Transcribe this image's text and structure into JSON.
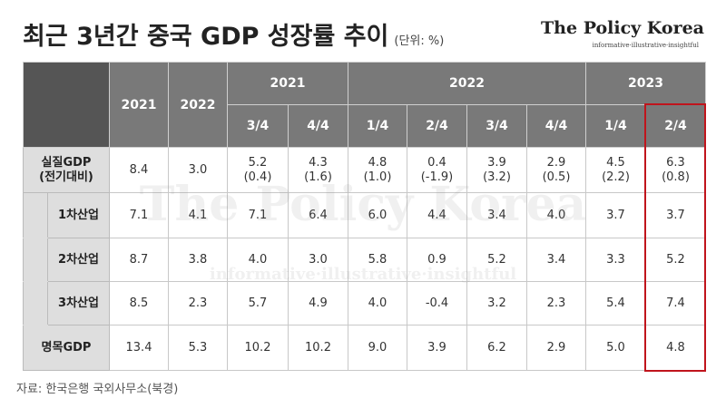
{
  "header": {
    "title": "최근 3년간 중국 GDP 성장률 추이",
    "unit": "(단위: %)",
    "logo": "The Policy Korea",
    "tagline": "informative·illustrative·insightful"
  },
  "table": {
    "years": [
      "2021",
      "2022"
    ],
    "groups": [
      {
        "year": "2021",
        "quarters": [
          "3/4",
          "4/4"
        ]
      },
      {
        "year": "2022",
        "quarters": [
          "1/4",
          "2/4",
          "3/4",
          "4/4"
        ]
      },
      {
        "year": "2023",
        "quarters": [
          "1/4",
          "2/4"
        ]
      }
    ],
    "rows": [
      {
        "label": "실질GDP",
        "label_sub": "(전기대비)",
        "cells": [
          "8.4",
          "3.0",
          "5.2",
          "4.3",
          "4.8",
          "0.4",
          "3.9",
          "2.9",
          "4.5",
          "6.3"
        ],
        "cells_sub": [
          "(0.4)",
          "(1.6)",
          "(1.0)",
          "(-1.9)",
          "(3.2)",
          "(0.5)",
          "(2.2)",
          "(0.8)"
        ]
      },
      {
        "label": "1차산업",
        "cells": [
          "7.1",
          "4.1",
          "7.1",
          "6.4",
          "6.0",
          "4.4",
          "3.4",
          "4.0",
          "3.7",
          "3.7"
        ]
      },
      {
        "label": "2차산업",
        "cells": [
          "8.7",
          "3.8",
          "4.0",
          "3.0",
          "5.8",
          "0.9",
          "5.2",
          "3.4",
          "3.3",
          "5.2"
        ]
      },
      {
        "label": "3차산업",
        "cells": [
          "8.5",
          "2.3",
          "5.7",
          "4.9",
          "4.0",
          "-0.4",
          "3.2",
          "2.3",
          "5.4",
          "7.4"
        ]
      },
      {
        "label": "명목GDP",
        "cells": [
          "13.4",
          "5.3",
          "10.2",
          "10.2",
          "9.0",
          "3.9",
          "6.2",
          "2.9",
          "5.0",
          "4.8"
        ]
      }
    ]
  },
  "source": "자료: 한국은행 국외사무소(북경)"
}
